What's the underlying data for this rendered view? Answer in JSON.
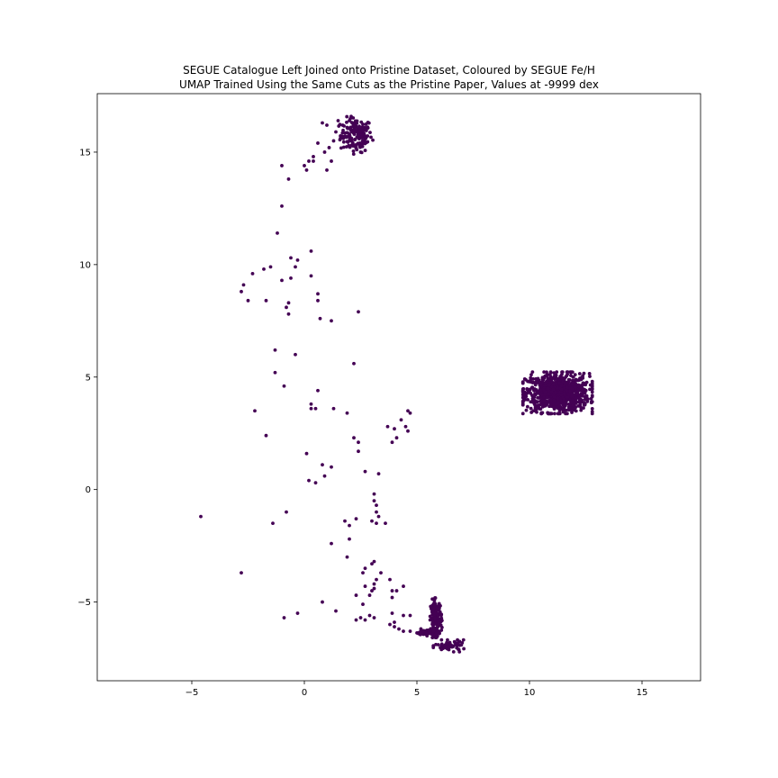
{
  "chart_data": {
    "type": "scatter",
    "title": "SEGUE Catalogue Left Joined onto Pristine Dataset, Coloured by SEGUE Fe/H",
    "subtitle": "UMAP Trained Using the Same Cuts as the Pristine Paper, Values at -9999 dex",
    "xlabel": "",
    "ylabel": "",
    "xlim": [
      -9.2,
      17.6
    ],
    "ylim": [
      -8.5,
      17.6
    ],
    "xticks": [
      -5,
      0,
      5,
      10,
      15
    ],
    "xtick_labels": [
      "−5",
      "0",
      "5",
      "10",
      "15"
    ],
    "yticks": [
      -5,
      0,
      5,
      10,
      15
    ],
    "ytick_labels": [
      "−5",
      "0",
      "5",
      "10",
      "15"
    ],
    "grid": false,
    "legend": "none",
    "point_color": "#440154",
    "points": [
      [
        0.8,
        16.3
      ],
      [
        1.0,
        16.2
      ],
      [
        1.5,
        16.4
      ],
      [
        1.7,
        16.2
      ],
      [
        2.0,
        16.4
      ],
      [
        2.2,
        16.3
      ],
      [
        1.4,
        15.9
      ],
      [
        1.6,
        15.6
      ],
      [
        1.8,
        15.7
      ],
      [
        2.0,
        15.8
      ],
      [
        2.1,
        15.5
      ],
      [
        2.3,
        15.2
      ],
      [
        2.5,
        15.0
      ],
      [
        2.6,
        15.4
      ],
      [
        2.7,
        15.6
      ],
      [
        2.4,
        15.8
      ],
      [
        2.2,
        16.0
      ],
      [
        1.9,
        16.1
      ],
      [
        1.3,
        15.5
      ],
      [
        1.1,
        15.2
      ],
      [
        0.9,
        15.0
      ],
      [
        1.2,
        14.6
      ],
      [
        1.0,
        14.2
      ],
      [
        0.6,
        15.4
      ],
      [
        0.4,
        14.6
      ],
      [
        0.2,
        14.6
      ],
      [
        0.0,
        14.4
      ],
      [
        0.4,
        14.8
      ],
      [
        0.1,
        14.2
      ],
      [
        -1.0,
        14.4
      ],
      [
        -0.7,
        13.8
      ],
      [
        -1.0,
        12.6
      ],
      [
        -1.2,
        11.4
      ],
      [
        0.3,
        10.6
      ],
      [
        -0.6,
        10.3
      ],
      [
        -0.3,
        10.2
      ],
      [
        -0.4,
        9.9
      ],
      [
        -1.5,
        9.9
      ],
      [
        -1.8,
        9.8
      ],
      [
        -2.3,
        9.6
      ],
      [
        -2.7,
        9.1
      ],
      [
        -2.8,
        8.8
      ],
      [
        -2.5,
        8.4
      ],
      [
        -1.7,
        8.4
      ],
      [
        -1.0,
        9.3
      ],
      [
        -0.6,
        9.4
      ],
      [
        0.3,
        9.5
      ],
      [
        0.6,
        8.7
      ],
      [
        0.6,
        8.4
      ],
      [
        -0.7,
        8.3
      ],
      [
        -0.8,
        8.1
      ],
      [
        -0.7,
        7.8
      ],
      [
        0.7,
        7.6
      ],
      [
        1.2,
        7.5
      ],
      [
        2.4,
        7.9
      ],
      [
        -1.3,
        6.2
      ],
      [
        -0.4,
        6.0
      ],
      [
        -1.3,
        5.2
      ],
      [
        -0.9,
        4.6
      ],
      [
        2.2,
        5.6
      ],
      [
        0.6,
        4.4
      ],
      [
        0.3,
        3.8
      ],
      [
        0.3,
        3.6
      ],
      [
        0.5,
        3.6
      ],
      [
        1.3,
        3.6
      ],
      [
        1.9,
        3.4
      ],
      [
        -2.2,
        3.5
      ],
      [
        4.6,
        3.5
      ],
      [
        4.7,
        3.4
      ],
      [
        4.3,
        3.1
      ],
      [
        4.5,
        2.8
      ],
      [
        3.7,
        2.8
      ],
      [
        4.0,
        2.7
      ],
      [
        4.6,
        2.6
      ],
      [
        4.1,
        2.3
      ],
      [
        3.9,
        2.1
      ],
      [
        2.2,
        2.3
      ],
      [
        2.4,
        2.1
      ],
      [
        -1.7,
        2.4
      ],
      [
        0.1,
        1.6
      ],
      [
        2.4,
        1.7
      ],
      [
        0.8,
        1.1
      ],
      [
        1.2,
        1.0
      ],
      [
        2.7,
        0.8
      ],
      [
        3.3,
        0.7
      ],
      [
        0.9,
        0.6
      ],
      [
        0.2,
        0.4
      ],
      [
        0.5,
        0.3
      ],
      [
        3.1,
        -0.2
      ],
      [
        3.1,
        -0.5
      ],
      [
        3.2,
        -0.7
      ],
      [
        3.2,
        -1.0
      ],
      [
        3.3,
        -1.2
      ],
      [
        3.2,
        -1.5
      ],
      [
        3.0,
        -1.4
      ],
      [
        3.6,
        -1.5
      ],
      [
        2.3,
        -1.3
      ],
      [
        1.8,
        -1.4
      ],
      [
        2.0,
        -1.6
      ],
      [
        2.0,
        -2.2
      ],
      [
        1.2,
        -2.4
      ],
      [
        -1.4,
        -1.5
      ],
      [
        -0.8,
        -1.0
      ],
      [
        -4.6,
        -1.2
      ],
      [
        1.9,
        -3.0
      ],
      [
        3.0,
        -3.3
      ],
      [
        3.1,
        -3.2
      ],
      [
        2.7,
        -3.5
      ],
      [
        2.6,
        -3.7
      ],
      [
        3.4,
        -3.7
      ],
      [
        3.2,
        -4.0
      ],
      [
        3.1,
        -4.2
      ],
      [
        3.0,
        -4.5
      ],
      [
        2.9,
        -4.7
      ],
      [
        3.1,
        -4.4
      ],
      [
        2.7,
        -4.3
      ],
      [
        2.3,
        -4.7
      ],
      [
        3.8,
        -4.0
      ],
      [
        3.9,
        -4.5
      ],
      [
        4.1,
        -4.5
      ],
      [
        4.4,
        -4.3
      ],
      [
        3.9,
        -4.8
      ],
      [
        2.6,
        -5.1
      ],
      [
        2.3,
        -5.8
      ],
      [
        2.5,
        -5.7
      ],
      [
        2.7,
        -5.8
      ],
      [
        3.1,
        -5.7
      ],
      [
        2.9,
        -5.6
      ],
      [
        3.9,
        -5.5
      ],
      [
        4.0,
        -5.9
      ],
      [
        4.4,
        -5.6
      ],
      [
        4.7,
        -5.6
      ],
      [
        3.8,
        -6.0
      ],
      [
        4.2,
        -6.2
      ],
      [
        4.4,
        -6.3
      ],
      [
        4.7,
        -6.3
      ],
      [
        -2.8,
        -3.7
      ],
      [
        -0.9,
        -5.7
      ],
      [
        -0.3,
        -5.5
      ],
      [
        0.8,
        -5.0
      ],
      [
        1.4,
        -5.4
      ],
      [
        4.0,
        -6.1
      ]
    ],
    "clusters": [
      {
        "center": [
          2.3,
          15.75
        ],
        "spread": [
          0.35,
          0.38
        ],
        "count": 140
      },
      {
        "center": [
          11.25,
          4.3
        ],
        "spread": [
          0.7,
          0.42
        ],
        "count": 900
      },
      {
        "center": [
          5.85,
          -5.7
        ],
        "spread": [
          0.12,
          0.4
        ],
        "count": 150
      },
      {
        "center": [
          5.45,
          -6.35
        ],
        "spread": [
          0.25,
          0.07
        ],
        "count": 50
      },
      {
        "center": [
          6.5,
          -6.95
        ],
        "spread": [
          0.35,
          0.12
        ],
        "count": 60
      }
    ],
    "sample_style": "dense blobs; sampled from cluster summaries"
  }
}
